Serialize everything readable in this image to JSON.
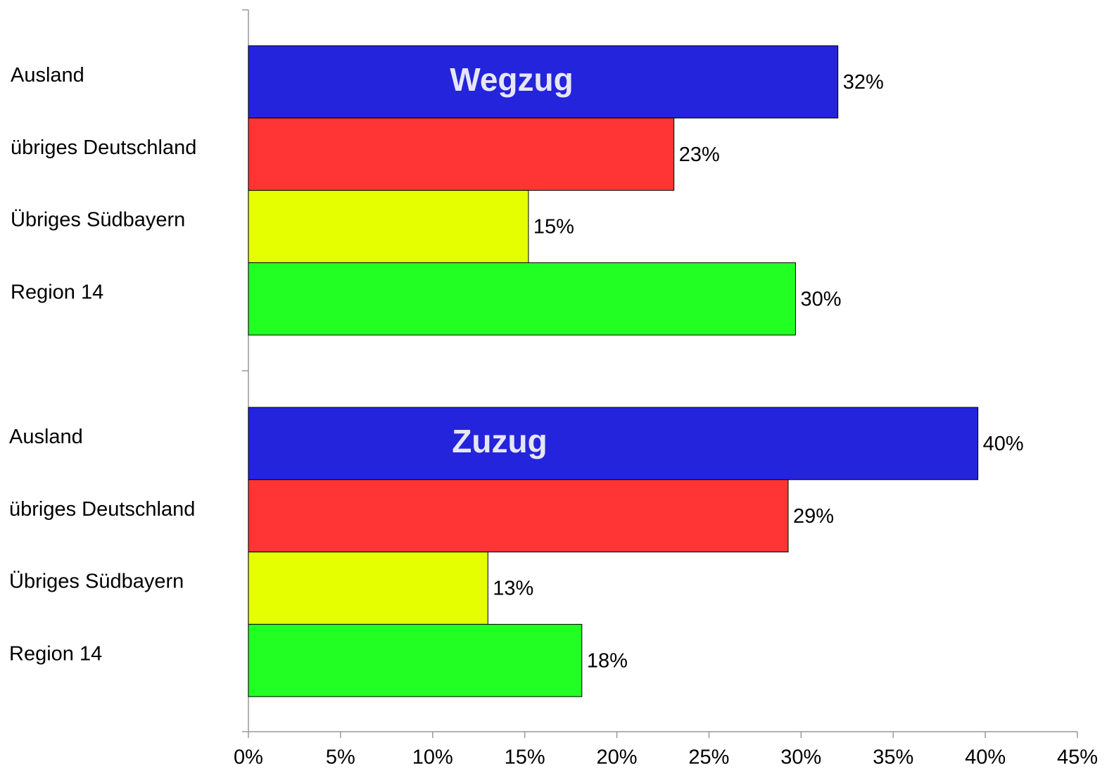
{
  "chart_data": {
    "type": "bar",
    "orientation": "horizontal",
    "colors": [
      "#2424dc",
      "#ff3535",
      "#e6ff00",
      "#22ff22"
    ],
    "groups": [
      {
        "name": "Wegzug",
        "categories": [
          "Ausland",
          "übriges Deutschland",
          "Übriges Südbayern",
          "Region 14"
        ],
        "values": [
          32,
          23.1,
          15.2,
          29.7
        ],
        "value_labels": [
          "32%",
          "23%",
          "15%",
          "30%"
        ]
      },
      {
        "name": "Zuzug",
        "categories": [
          "Ausland",
          "übriges Deutschland",
          "Übriges Südbayern",
          "Region 14"
        ],
        "values": [
          39.6,
          29.3,
          13,
          18.1
        ],
        "value_labels": [
          "40%",
          "29%",
          "13%",
          "18%"
        ]
      }
    ],
    "xlim": [
      0,
      45
    ],
    "xticks": [
      {
        "value": 0,
        "label": "0%"
      },
      {
        "value": 5,
        "label": "5%"
      },
      {
        "value": 10,
        "label": "10%"
      },
      {
        "value": 15,
        "label": "15%"
      },
      {
        "value": 20,
        "label": "20%"
      },
      {
        "value": 25,
        "label": "25%"
      },
      {
        "value": 30,
        "label": "30%"
      },
      {
        "value": 35,
        "label": "35%"
      },
      {
        "value": 40,
        "label": "40%"
      },
      {
        "value": 45,
        "label": "45%"
      }
    ],
    "grid": false
  }
}
